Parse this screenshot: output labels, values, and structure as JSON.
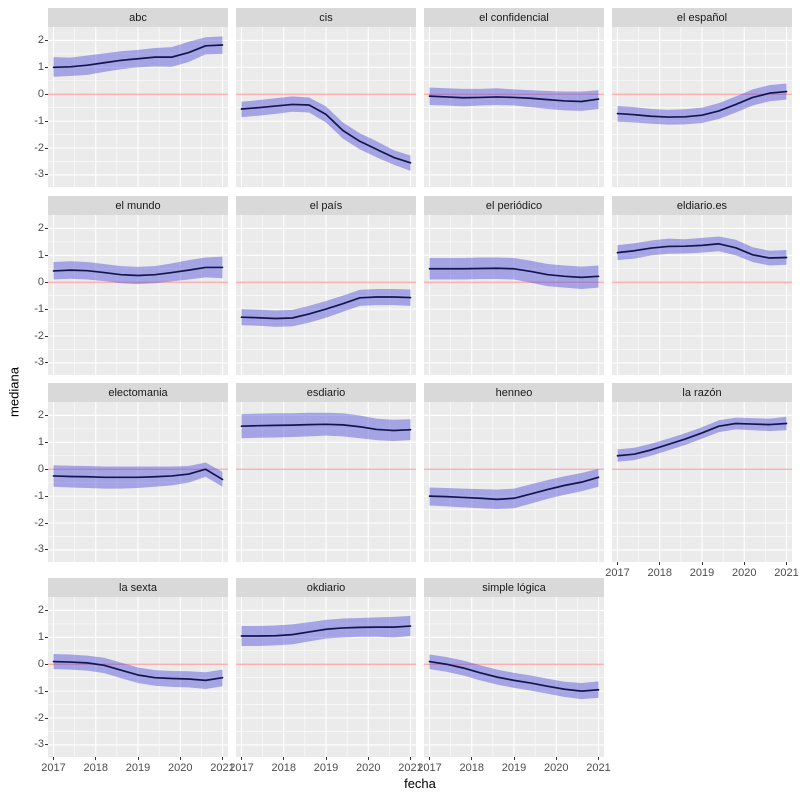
{
  "figure": {
    "ylabel": "mediana",
    "xlabel": "fecha"
  },
  "colors": {
    "panel_bg": "#EBEBEB",
    "strip_bg": "#D9D9D9",
    "grid": "#FFFFFF",
    "ribbon": "rgba(77,77,219,0.45)",
    "line": "#15154E",
    "zero_line": "rgba(255,0,0,0.34)",
    "axis_text": "#4D4D4D",
    "strip_text": "#1A1A1A",
    "tick": "#333333"
  },
  "chart_data": {
    "type": "line",
    "subtype": "faceted-line-with-confidence-ribbon",
    "title": "",
    "xlabel": "fecha",
    "ylabel": "mediana",
    "grid": true,
    "legend": false,
    "xlim": [
      2016.87,
      2021.13
    ],
    "ylim": [
      -3.45,
      2.5
    ],
    "x_tick_values": [
      2017,
      2018,
      2019,
      2020,
      2021
    ],
    "x_tick_labels": [
      "2017",
      "2018",
      "2019",
      "2020",
      "2021"
    ],
    "x_minor": [
      2017.5,
      2018.5,
      2019.5,
      2020.5
    ],
    "y_tick_values": [
      2,
      1,
      0,
      -1,
      -2,
      -3
    ],
    "y_tick_labels": [
      "2",
      "1",
      "0",
      "-1",
      "-2",
      "-3"
    ],
    "y_minor": [
      1.5,
      0.5,
      -0.5,
      -1.5,
      -2.5
    ],
    "zero_reference_line": 0,
    "x_shared": [
      2017,
      2017.4,
      2017.8,
      2018.2,
      2018.6,
      2019,
      2019.4,
      2019.8,
      2020.2,
      2020.6,
      2021
    ],
    "facets": [
      {
        "label": "abc",
        "y": [
          1.0,
          1.02,
          1.08,
          1.17,
          1.26,
          1.32,
          1.38,
          1.38,
          1.55,
          1.8,
          1.83
        ],
        "lo": [
          0.65,
          0.68,
          0.72,
          0.83,
          0.93,
          1.0,
          1.03,
          1.02,
          1.2,
          1.48,
          1.5
        ],
        "hi": [
          1.38,
          1.36,
          1.44,
          1.52,
          1.6,
          1.65,
          1.72,
          1.75,
          1.95,
          2.12,
          2.15
        ]
      },
      {
        "label": "cis",
        "y": [
          -0.55,
          -0.5,
          -0.44,
          -0.38,
          -0.4,
          -0.75,
          -1.35,
          -1.75,
          -2.05,
          -2.35,
          -2.55
        ],
        "lo": [
          -0.85,
          -0.8,
          -0.73,
          -0.65,
          -0.68,
          -1.05,
          -1.65,
          -2.05,
          -2.35,
          -2.62,
          -2.85
        ],
        "hi": [
          -0.28,
          -0.22,
          -0.15,
          -0.08,
          -0.12,
          -0.45,
          -1.05,
          -1.45,
          -1.75,
          -2.08,
          -2.28
        ]
      },
      {
        "label": "el confidencial",
        "y": [
          -0.07,
          -0.1,
          -0.13,
          -0.12,
          -0.1,
          -0.12,
          -0.15,
          -0.2,
          -0.25,
          -0.27,
          -0.18
        ],
        "lo": [
          -0.4,
          -0.42,
          -0.45,
          -0.42,
          -0.4,
          -0.42,
          -0.48,
          -0.55,
          -0.6,
          -0.62,
          -0.55
        ],
        "hi": [
          0.25,
          0.22,
          0.2,
          0.2,
          0.22,
          0.18,
          0.15,
          0.12,
          0.1,
          0.1,
          0.15
        ]
      },
      {
        "label": "el español",
        "y": [
          -0.72,
          -0.76,
          -0.82,
          -0.85,
          -0.84,
          -0.78,
          -0.62,
          -0.38,
          -0.12,
          0.04,
          0.1
        ],
        "lo": [
          -1.02,
          -1.05,
          -1.1,
          -1.13,
          -1.12,
          -1.07,
          -0.92,
          -0.68,
          -0.42,
          -0.26,
          -0.2
        ],
        "hi": [
          -0.44,
          -0.48,
          -0.55,
          -0.58,
          -0.56,
          -0.5,
          -0.33,
          -0.08,
          0.18,
          0.34,
          0.4
        ]
      },
      {
        "label": "el mundo",
        "y": [
          0.42,
          0.45,
          0.43,
          0.36,
          0.28,
          0.25,
          0.28,
          0.36,
          0.45,
          0.55,
          0.55
        ],
        "lo": [
          0.1,
          0.13,
          0.1,
          0.04,
          -0.04,
          -0.07,
          -0.04,
          0.03,
          0.1,
          0.18,
          0.15
        ],
        "hi": [
          0.75,
          0.78,
          0.75,
          0.68,
          0.6,
          0.57,
          0.6,
          0.7,
          0.82,
          0.92,
          0.95
        ]
      },
      {
        "label": "el país",
        "y": [
          -1.3,
          -1.32,
          -1.35,
          -1.33,
          -1.18,
          -1.0,
          -0.8,
          -0.58,
          -0.55,
          -0.55,
          -0.57
        ],
        "lo": [
          -1.6,
          -1.62,
          -1.66,
          -1.64,
          -1.5,
          -1.32,
          -1.1,
          -0.88,
          -0.85,
          -0.85,
          -0.88
        ],
        "hi": [
          -1.0,
          -1.02,
          -1.05,
          -1.03,
          -0.88,
          -0.7,
          -0.5,
          -0.28,
          -0.25,
          -0.25,
          -0.27
        ]
      },
      {
        "label": "el periódico",
        "y": [
          0.5,
          0.5,
          0.5,
          0.51,
          0.52,
          0.5,
          0.4,
          0.28,
          0.22,
          0.18,
          0.22
        ],
        "lo": [
          0.1,
          0.1,
          0.1,
          0.12,
          0.12,
          0.1,
          -0.02,
          -0.15,
          -0.2,
          -0.25,
          -0.2
        ],
        "hi": [
          0.9,
          0.9,
          0.9,
          0.92,
          0.92,
          0.9,
          0.8,
          0.68,
          0.62,
          0.58,
          0.62
        ]
      },
      {
        "label": "eldiario.es",
        "y": [
          1.1,
          1.17,
          1.27,
          1.33,
          1.34,
          1.37,
          1.43,
          1.28,
          1.02,
          0.9,
          0.92
        ],
        "lo": [
          0.82,
          0.88,
          1.0,
          1.06,
          1.07,
          1.1,
          1.15,
          1.0,
          0.75,
          0.62,
          0.65
        ],
        "hi": [
          1.38,
          1.45,
          1.55,
          1.62,
          1.6,
          1.65,
          1.7,
          1.58,
          1.3,
          1.17,
          1.2
        ]
      },
      {
        "label": "electomania",
        "y": [
          -0.25,
          -0.27,
          -0.28,
          -0.3,
          -0.3,
          -0.3,
          -0.28,
          -0.25,
          -0.18,
          0.0,
          -0.38
        ],
        "lo": [
          -0.65,
          -0.68,
          -0.7,
          -0.72,
          -0.72,
          -0.7,
          -0.65,
          -0.6,
          -0.5,
          -0.28,
          -0.65
        ],
        "hi": [
          0.15,
          0.13,
          0.12,
          0.1,
          0.1,
          0.1,
          0.1,
          0.1,
          0.12,
          0.25,
          -0.1
        ]
      },
      {
        "label": "esdiario",
        "y": [
          1.6,
          1.62,
          1.63,
          1.64,
          1.66,
          1.67,
          1.65,
          1.58,
          1.48,
          1.44,
          1.47
        ],
        "lo": [
          1.15,
          1.17,
          1.18,
          1.2,
          1.22,
          1.25,
          1.22,
          1.15,
          1.08,
          1.05,
          1.08
        ],
        "hi": [
          2.05,
          2.07,
          2.08,
          2.08,
          2.1,
          2.1,
          2.08,
          2.0,
          1.88,
          1.84,
          1.86
        ]
      },
      {
        "label": "henneo",
        "y": [
          -1.0,
          -1.02,
          -1.05,
          -1.08,
          -1.12,
          -1.08,
          -0.92,
          -0.75,
          -0.6,
          -0.48,
          -0.3
        ],
        "lo": [
          -1.35,
          -1.38,
          -1.42,
          -1.45,
          -1.48,
          -1.45,
          -1.28,
          -1.1,
          -0.95,
          -0.82,
          -0.65
        ],
        "hi": [
          -0.68,
          -0.7,
          -0.72,
          -0.74,
          -0.76,
          -0.72,
          -0.56,
          -0.4,
          -0.26,
          -0.14,
          0.02
        ]
      },
      {
        "label": "la razón",
        "y": [
          0.5,
          0.56,
          0.72,
          0.92,
          1.12,
          1.35,
          1.6,
          1.7,
          1.68,
          1.66,
          1.7
        ],
        "lo": [
          0.28,
          0.34,
          0.5,
          0.7,
          0.9,
          1.14,
          1.38,
          1.48,
          1.45,
          1.42,
          1.45
        ],
        "hi": [
          0.74,
          0.8,
          0.95,
          1.14,
          1.34,
          1.56,
          1.82,
          1.92,
          1.9,
          1.88,
          1.95
        ]
      },
      {
        "label": "la sexta",
        "y": [
          0.1,
          0.08,
          0.05,
          -0.04,
          -0.22,
          -0.4,
          -0.5,
          -0.53,
          -0.55,
          -0.6,
          -0.5
        ],
        "lo": [
          -0.18,
          -0.2,
          -0.24,
          -0.33,
          -0.52,
          -0.7,
          -0.8,
          -0.84,
          -0.86,
          -0.92,
          -0.82
        ],
        "hi": [
          0.38,
          0.36,
          0.32,
          0.24,
          0.06,
          -0.12,
          -0.22,
          -0.25,
          -0.26,
          -0.3,
          -0.2
        ]
      },
      {
        "label": "okdiario",
        "y": [
          1.05,
          1.05,
          1.06,
          1.1,
          1.2,
          1.3,
          1.35,
          1.37,
          1.38,
          1.38,
          1.42
        ],
        "lo": [
          0.68,
          0.68,
          0.7,
          0.74,
          0.85,
          0.95,
          1.0,
          1.02,
          1.02,
          1.0,
          1.05
        ],
        "hi": [
          1.42,
          1.42,
          1.44,
          1.48,
          1.56,
          1.65,
          1.7,
          1.72,
          1.74,
          1.76,
          1.8
        ]
      },
      {
        "label": "simple lógica",
        "y": [
          0.1,
          0.0,
          -0.14,
          -0.32,
          -0.48,
          -0.6,
          -0.7,
          -0.82,
          -0.93,
          -1.0,
          -0.95
        ],
        "lo": [
          -0.18,
          -0.28,
          -0.42,
          -0.6,
          -0.76,
          -0.88,
          -0.98,
          -1.1,
          -1.22,
          -1.3,
          -1.25
        ],
        "hi": [
          0.36,
          0.27,
          0.14,
          -0.04,
          -0.2,
          -0.32,
          -0.42,
          -0.54,
          -0.65,
          -0.7,
          -0.64
        ]
      }
    ]
  }
}
